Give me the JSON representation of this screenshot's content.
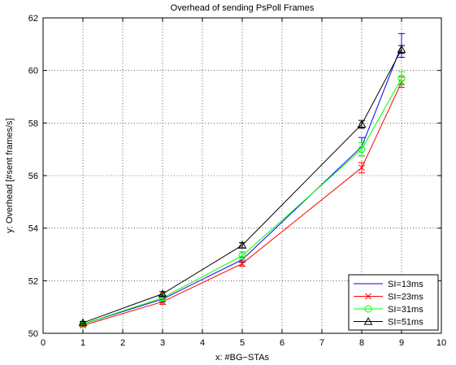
{
  "chart_data": {
    "type": "line",
    "title": "Overhead of sending PsPoll Frames",
    "xlabel": "x: #BG−STAs",
    "ylabel": "y: Overhead [#sent frames/s]",
    "xlim": [
      0,
      10
    ],
    "ylim": [
      50,
      62
    ],
    "x_ticks": [
      0,
      1,
      2,
      3,
      4,
      5,
      6,
      7,
      8,
      9,
      10
    ],
    "y_ticks": [
      50,
      52,
      54,
      56,
      58,
      60,
      62
    ],
    "grid": true,
    "legend_position": "bottom-right",
    "x": [
      1,
      3,
      5,
      8,
      9
    ],
    "series": [
      {
        "name": "SI=13ms",
        "color": "#0000ff",
        "marker": "none",
        "values": [
          50.35,
          51.3,
          52.8,
          57.1,
          60.95
        ],
        "errors": [
          0.05,
          0.1,
          0.1,
          0.35,
          0.45
        ]
      },
      {
        "name": "SI=23ms",
        "color": "#ff0000",
        "marker": "x",
        "values": [
          50.3,
          51.2,
          52.65,
          56.3,
          59.55
        ],
        "errors": [
          0.05,
          0.1,
          0.1,
          0.2,
          0.2
        ]
      },
      {
        "name": "SI=31ms",
        "color": "#00ff00",
        "marker": "circle",
        "values": [
          50.35,
          51.35,
          52.95,
          57.0,
          59.7
        ],
        "errors": [
          0.05,
          0.1,
          0.15,
          0.25,
          0.25
        ]
      },
      {
        "name": "SI=51ms",
        "color": "#000000",
        "marker": "triangle",
        "values": [
          50.4,
          51.5,
          53.35,
          57.95,
          60.8
        ],
        "errors": [
          0.05,
          0.08,
          0.1,
          0.15,
          0.15
        ]
      }
    ]
  }
}
